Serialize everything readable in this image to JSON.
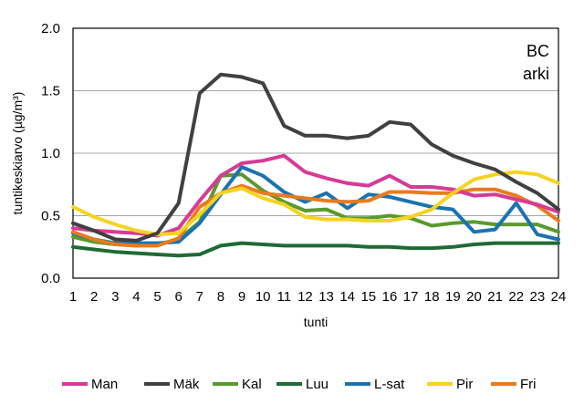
{
  "chart_data": {
    "type": "line",
    "title": "",
    "annotation": [
      "BC",
      "arki"
    ],
    "xlabel": "tunti",
    "ylabel": "tuntikeskiarvo (µg/m³)",
    "x": [
      1,
      2,
      3,
      4,
      5,
      6,
      7,
      8,
      9,
      10,
      11,
      12,
      13,
      14,
      15,
      16,
      17,
      18,
      19,
      20,
      21,
      22,
      23,
      24
    ],
    "xtick_labels": [
      "1",
      "2",
      "3",
      "4",
      "5",
      "6",
      "7",
      "8",
      "9",
      "10",
      "11",
      "12",
      "13",
      "14",
      "15",
      "16",
      "17",
      "18",
      "19",
      "20",
      "21",
      "22",
      "23",
      "24"
    ],
    "ylim": [
      0,
      2.0
    ],
    "ytick_labels": [
      "0.0",
      "0.5",
      "1.0",
      "1.5",
      "2.0"
    ],
    "yticks": [
      0,
      0.5,
      1.0,
      1.5,
      2.0
    ],
    "grid": true,
    "legend_position": "bottom",
    "series": [
      {
        "name": "Man",
        "color": "#d63b96",
        "values": [
          0.4,
          0.38,
          0.37,
          0.36,
          0.34,
          0.4,
          0.62,
          0.82,
          0.92,
          0.94,
          0.98,
          0.85,
          0.8,
          0.76,
          0.74,
          0.82,
          0.73,
          0.73,
          0.71,
          0.66,
          0.67,
          0.63,
          0.59,
          0.53
        ]
      },
      {
        "name": "Mäk",
        "color": "#404040",
        "values": [
          0.44,
          0.38,
          0.31,
          0.3,
          0.36,
          0.6,
          1.48,
          1.63,
          1.61,
          1.56,
          1.22,
          1.14,
          1.14,
          1.12,
          1.14,
          1.25,
          1.23,
          1.07,
          0.98,
          0.92,
          0.87,
          0.77,
          0.68,
          0.55
        ]
      },
      {
        "name": "Kal",
        "color": "#5a9a2c",
        "values": [
          0.33,
          0.29,
          0.27,
          0.26,
          0.27,
          0.31,
          0.45,
          0.82,
          0.83,
          0.7,
          0.61,
          0.54,
          0.55,
          0.48,
          0.48,
          0.5,
          0.48,
          0.42,
          0.44,
          0.45,
          0.43,
          0.43,
          0.43,
          0.37
        ]
      },
      {
        "name": "Luu",
        "color": "#1e6b34",
        "values": [
          0.25,
          0.23,
          0.21,
          0.2,
          0.19,
          0.18,
          0.19,
          0.26,
          0.28,
          0.27,
          0.26,
          0.26,
          0.26,
          0.26,
          0.25,
          0.25,
          0.24,
          0.24,
          0.25,
          0.27,
          0.28,
          0.28,
          0.28,
          0.28
        ]
      },
      {
        "name": "L-sat",
        "color": "#1a73b0",
        "values": [
          0.36,
          0.31,
          0.28,
          0.28,
          0.28,
          0.29,
          0.44,
          0.67,
          0.89,
          0.82,
          0.69,
          0.61,
          0.68,
          0.56,
          0.67,
          0.65,
          0.61,
          0.57,
          0.55,
          0.37,
          0.39,
          0.6,
          0.35,
          0.31
        ]
      },
      {
        "name": "Pir",
        "color": "#f5d321",
        "values": [
          0.57,
          0.49,
          0.43,
          0.38,
          0.35,
          0.36,
          0.51,
          0.68,
          0.72,
          0.64,
          0.59,
          0.49,
          0.47,
          0.47,
          0.46,
          0.46,
          0.49,
          0.55,
          0.68,
          0.79,
          0.83,
          0.85,
          0.83,
          0.76
        ]
      },
      {
        "name": "Fri",
        "color": "#e87b1e",
        "values": [
          0.37,
          0.31,
          0.27,
          0.26,
          0.26,
          0.32,
          0.57,
          0.68,
          0.74,
          0.68,
          0.66,
          0.64,
          0.62,
          0.61,
          0.62,
          0.69,
          0.69,
          0.68,
          0.68,
          0.71,
          0.71,
          0.66,
          0.58,
          0.46
        ]
      }
    ]
  }
}
